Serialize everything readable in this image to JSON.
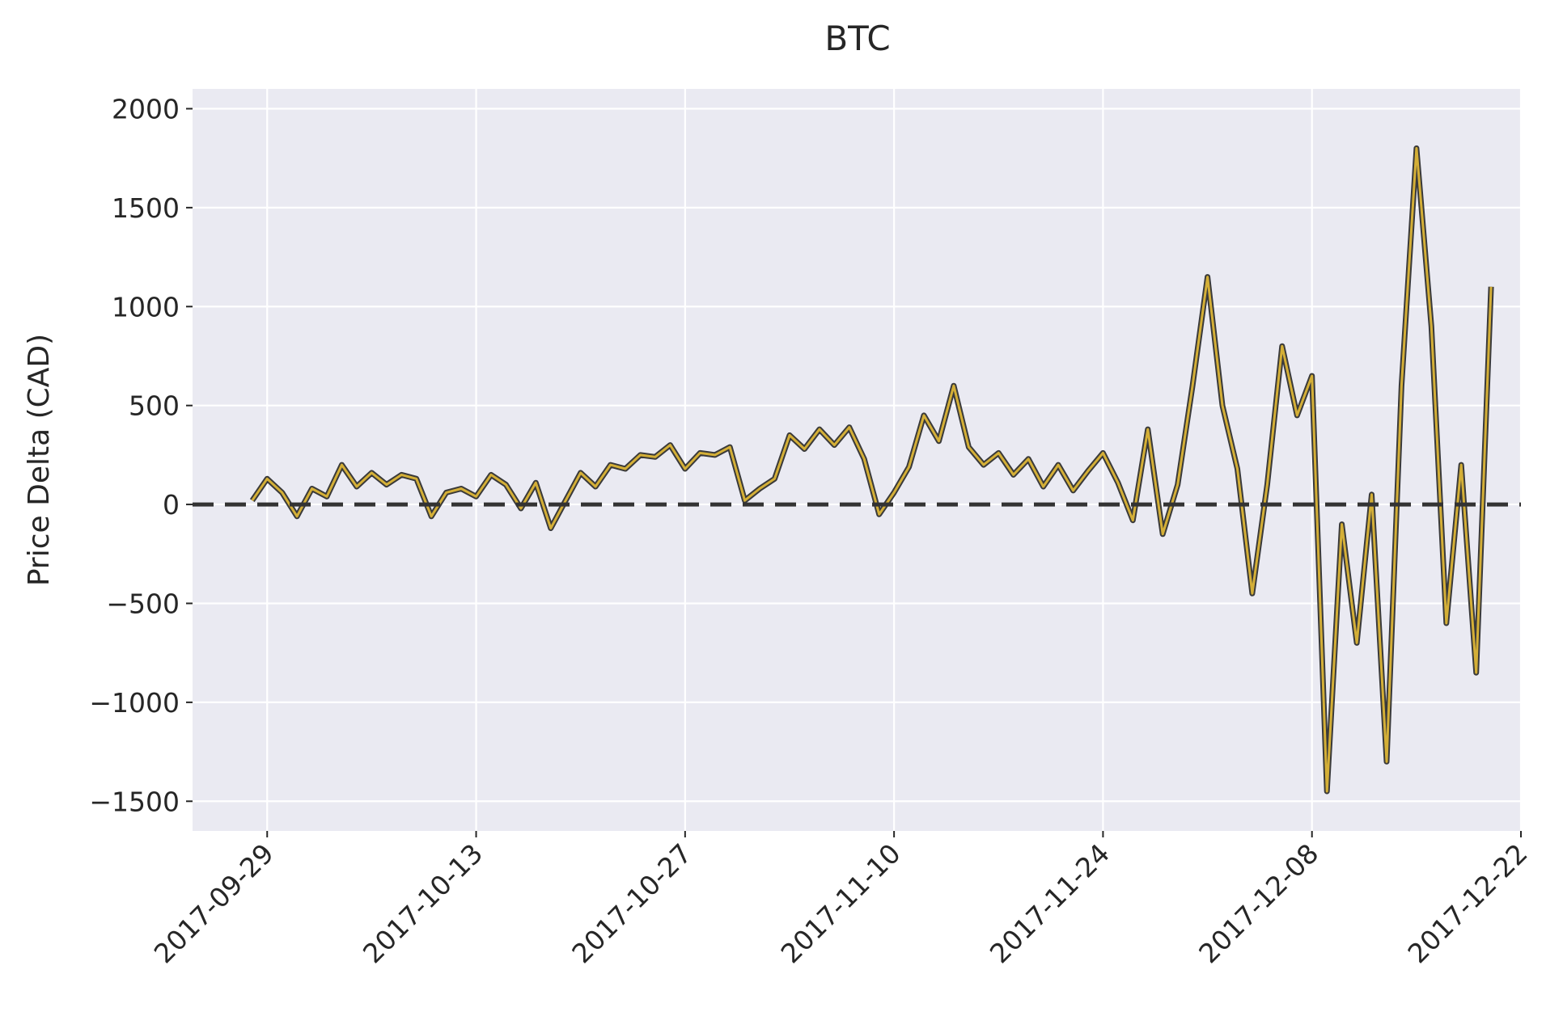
{
  "chart_data": {
    "type": "line",
    "title": "BTC",
    "xlabel": "",
    "ylabel": "Price Delta (CAD)",
    "x_type": "date",
    "xlim": [
      "2017-09-24",
      "2017-12-22"
    ],
    "ylim": [
      -1650,
      2100
    ],
    "xticks": [
      "2017-09-29",
      "2017-10-13",
      "2017-10-27",
      "2017-11-10",
      "2017-11-24",
      "2017-12-08",
      "2017-12-22"
    ],
    "yticks": [
      2000,
      1500,
      1000,
      500,
      0,
      -500,
      -1000,
      -1500
    ],
    "ytick_labels": [
      "2000",
      "1500",
      "1000",
      "500",
      "0",
      "−500",
      "−1000",
      "−1500"
    ],
    "grid": true,
    "legend": "none",
    "reference_line": {
      "y": 0,
      "style": "dashed"
    },
    "colors": {
      "background": "#eaeaf2",
      "grid": "#ffffff",
      "line_fill": "#d4af37",
      "line_edge": "#3a3a3a",
      "zero_line": "#333333"
    },
    "series": [
      {
        "x": [
          "2017-09-28",
          "2017-09-29",
          "2017-09-30",
          "2017-10-01",
          "2017-10-02",
          "2017-10-03",
          "2017-10-04",
          "2017-10-05",
          "2017-10-06",
          "2017-10-07",
          "2017-10-08",
          "2017-10-09",
          "2017-10-10",
          "2017-10-11",
          "2017-10-12",
          "2017-10-13",
          "2017-10-14",
          "2017-10-15",
          "2017-10-16",
          "2017-10-17",
          "2017-10-18",
          "2017-10-19",
          "2017-10-20",
          "2017-10-21",
          "2017-10-22",
          "2017-10-23",
          "2017-10-24",
          "2017-10-25",
          "2017-10-26",
          "2017-10-27",
          "2017-10-28",
          "2017-10-29",
          "2017-10-30",
          "2017-10-31",
          "2017-11-01",
          "2017-11-02",
          "2017-11-03",
          "2017-11-04",
          "2017-11-05",
          "2017-11-06",
          "2017-11-07",
          "2017-11-08",
          "2017-11-09",
          "2017-11-10",
          "2017-11-11",
          "2017-11-12",
          "2017-11-13",
          "2017-11-14",
          "2017-11-15",
          "2017-11-16",
          "2017-11-17",
          "2017-11-18",
          "2017-11-19",
          "2017-11-20",
          "2017-11-21",
          "2017-11-22",
          "2017-11-23",
          "2017-11-24",
          "2017-11-25",
          "2017-11-26",
          "2017-11-27",
          "2017-11-28",
          "2017-11-29",
          "2017-11-30",
          "2017-12-01",
          "2017-12-02",
          "2017-12-03",
          "2017-12-04",
          "2017-12-05",
          "2017-12-06",
          "2017-12-07",
          "2017-12-08",
          "2017-12-09",
          "2017-12-10",
          "2017-12-11",
          "2017-12-12",
          "2017-12-13",
          "2017-12-14",
          "2017-12-15",
          "2017-12-16",
          "2017-12-17",
          "2017-12-18",
          "2017-12-19",
          "2017-12-20"
        ],
        "values": [
          20,
          130,
          60,
          -60,
          80,
          40,
          200,
          90,
          160,
          100,
          150,
          130,
          -60,
          60,
          80,
          40,
          150,
          100,
          -20,
          110,
          -120,
          20,
          160,
          90,
          200,
          180,
          250,
          240,
          300,
          180,
          260,
          250,
          290,
          20,
          80,
          130,
          350,
          280,
          380,
          300,
          390,
          230,
          -50,
          60,
          190,
          450,
          320,
          600,
          290,
          200,
          260,
          150,
          230,
          90,
          200,
          70,
          170,
          260,
          110,
          -80,
          380,
          -150,
          100,
          600,
          1150,
          500,
          180,
          -450,
          100,
          800,
          450,
          650,
          -1450,
          -100,
          -700,
          50,
          -1300,
          600,
          1800,
          900,
          -600,
          200,
          -850,
          1100
        ]
      }
    ]
  }
}
